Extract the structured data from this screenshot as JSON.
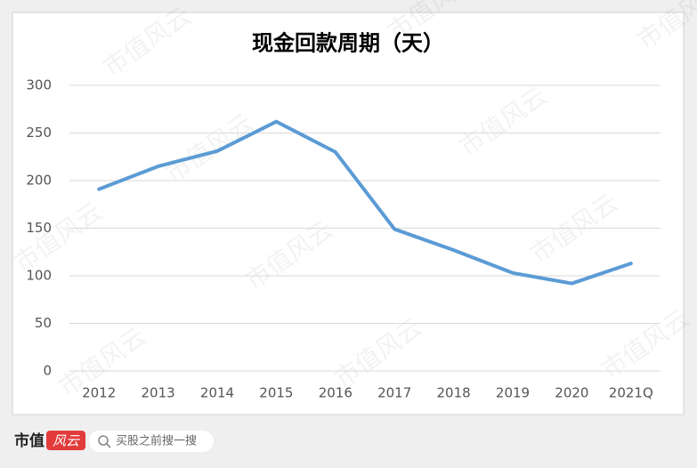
{
  "chart_data": {
    "type": "line",
    "title": "现金回款周期（天）",
    "categories": [
      "2012",
      "2013",
      "2014",
      "2015",
      "2016",
      "2017",
      "2018",
      "2019",
      "2020",
      "2021Q"
    ],
    "series": [
      {
        "name": "现金回款周期",
        "color": "#5b9bd5",
        "values": [
          191,
          215,
          231,
          262,
          230,
          149,
          127,
          103,
          92,
          113
        ]
      }
    ],
    "ylim": [
      0,
      300
    ],
    "yticks": [
      0,
      50,
      100,
      150,
      200,
      250,
      300
    ],
    "grid": true,
    "legend": false
  },
  "watermark": "市值风云",
  "footer": {
    "brand": "市值",
    "brand_accent": "风云",
    "search": "买股之前搜一搜"
  }
}
